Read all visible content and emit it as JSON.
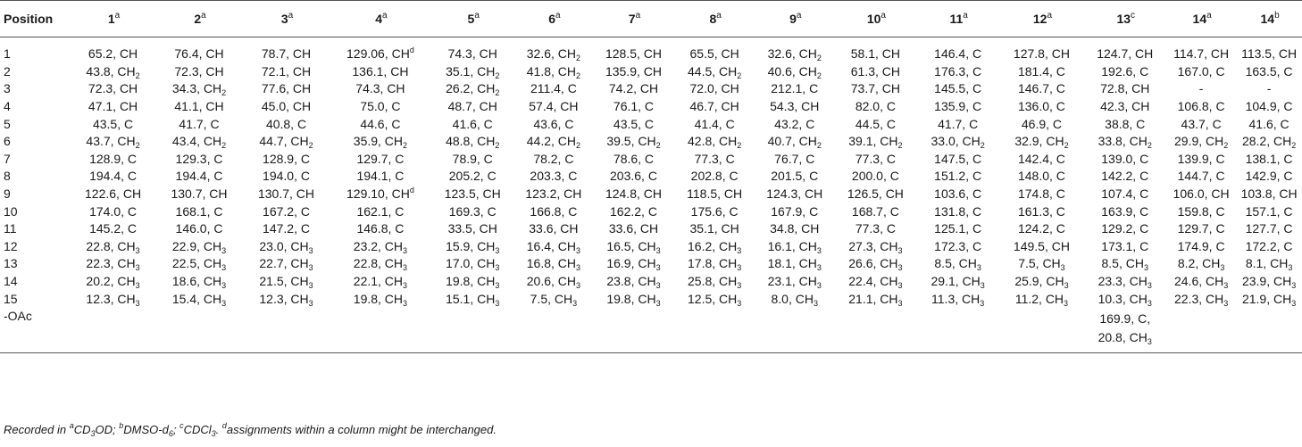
{
  "table": {
    "headers": [
      {
        "text": "Position",
        "sup": ""
      },
      {
        "text": "1",
        "sup": "a"
      },
      {
        "text": "2",
        "sup": "a"
      },
      {
        "text": "3",
        "sup": "a"
      },
      {
        "text": "4",
        "sup": "a"
      },
      {
        "text": "5",
        "sup": "a"
      },
      {
        "text": "6",
        "sup": "a"
      },
      {
        "text": "7",
        "sup": "a"
      },
      {
        "text": "8",
        "sup": "a"
      },
      {
        "text": "9",
        "sup": "a"
      },
      {
        "text": "10",
        "sup": "a"
      },
      {
        "text": "11",
        "sup": "a"
      },
      {
        "text": "12",
        "sup": "a"
      },
      {
        "text": "13",
        "sup": "c"
      },
      {
        "text": "14",
        "sup": "a"
      },
      {
        "text": "14",
        "sup": "b"
      }
    ],
    "rows": [
      [
        "1",
        "65.2, CH",
        "76.4, CH",
        "78.7, CH",
        "129.06, CH^d",
        "74.3, CH",
        "32.6, CH_2",
        "128.5, CH",
        "65.5, CH",
        "32.6, CH_2",
        "58.1, CH",
        "146.4, C",
        "127.8, CH",
        "124.7, CH",
        "114.7, CH",
        "113.5, CH"
      ],
      [
        "2",
        "43.8, CH_2",
        "72.3, CH",
        "72.1, CH",
        "136.1, CH",
        "35.1, CH_2",
        "41.8, CH_2",
        "135.9, CH",
        "44.5, CH_2",
        "40.6, CH_2",
        "61.3, CH",
        "176.3, C",
        "181.4, C",
        "192.6, C",
        "167.0, C",
        "163.5, C"
      ],
      [
        "3",
        "72.3, CH",
        "34.3, CH_2",
        "77.6, CH",
        "74.3, CH",
        "26.2, CH_2",
        "211.4, C",
        "74.2, CH",
        "72.0, CH",
        "212.1, C",
        "73.7, CH",
        "145.5, C",
        "146.7, C",
        "72.8, CH",
        "-",
        "-"
      ],
      [
        "4",
        "47.1, CH",
        "41.1, CH",
        "45.0, CH",
        "75.0, C",
        "48.7, CH",
        "57.4, CH",
        "76.1, C",
        "46.7, CH",
        "54.3, CH",
        "82.0, C",
        "135.9, C",
        "136.0, C",
        "42.3, CH",
        "106.8, C",
        "104.9, C"
      ],
      [
        "5",
        "43.5, C",
        "41.7, C",
        "40.8, C",
        "44.6, C",
        "41.6, C",
        "43.6, C",
        "43.5, C",
        "41.4, C",
        "43.2, C",
        "44.5, C",
        "41.7, C",
        "46.9, C",
        "38.8, C",
        "43.7, C",
        "41.6, C"
      ],
      [
        "6",
        "43.7, CH_2",
        "43.4, CH_2",
        "44.7, CH_2",
        "35.9, CH_2",
        "48.8, CH_2",
        "44.2, CH_2",
        "39.5, CH_2",
        "42.8, CH_2",
        "40.7, CH_2",
        "39.1, CH_2",
        "33.0, CH_2",
        "32.9, CH_2",
        "33.8, CH_2",
        "29.9, CH_2",
        "28.2, CH_2"
      ],
      [
        "7",
        "128.9, C",
        "129.3, C",
        "128.9, C",
        "129.7, C",
        "78.9, C",
        "78.2, C",
        "78.6, C",
        "77.3, C",
        "76.7, C",
        "77.3, C",
        "147.5, C",
        "142.4, C",
        "139.0, C",
        "139.9, C",
        "138.1, C"
      ],
      [
        "8",
        "194.4, C",
        "194.4, C",
        "194.0, C",
        "194.1, C",
        "205.2, C",
        "203.3, C",
        "203.6, C",
        "202.8, C",
        "201.5, C",
        "200.0, C",
        "151.2, C",
        "148.0, C",
        "142.2, C",
        "144.7, C",
        "142.9, C"
      ],
      [
        "9",
        "122.6, CH",
        "130.7, CH",
        "130.7, CH",
        "129.10, CH^d",
        "123.5, CH",
        "123.2, CH",
        "124.8, CH",
        "118.5, CH",
        "124.3, CH",
        "126.5, CH",
        "103.6, C",
        "174.8, C",
        "107.4, C",
        "106.0, CH",
        "103.8, CH"
      ],
      [
        "10",
        "174.0, C",
        "168.1, C",
        "167.2, C",
        "162.1, C",
        "169.3, C",
        "166.8, C",
        "162.2, C",
        "175.6, C",
        "167.9, C",
        "168.7, C",
        "131.8, C",
        "161.3, C",
        "163.9, C",
        "159.8, C",
        "157.1, C"
      ],
      [
        "11",
        "145.2, C",
        "146.0, C",
        "147.2, C",
        "146.8, C",
        "33.5, CH",
        "33.6, CH",
        "33.6, CH",
        "35.1, CH",
        "34.8, CH",
        "77.3, C",
        "125.1, C",
        "124.2, C",
        "129.2, C",
        "129.7, C",
        "127.7, C"
      ],
      [
        "12",
        "22.8, CH_3",
        "22.9, CH_3",
        "23.0, CH_3",
        "23.2, CH_3",
        "15.9, CH_3",
        "16.4, CH_3",
        "16.5, CH_3",
        "16.2, CH_3",
        "16.1, CH_3",
        "27.3, CH_3",
        "172.3, C",
        "149.5, CH",
        "173.1, C",
        "174.9, C",
        "172.2, C"
      ],
      [
        "13",
        "22.3, CH_3",
        "22.5, CH_3",
        "22.7, CH_3",
        "22.8, CH_3",
        "17.0, CH_3",
        "16.8, CH_3",
        "16.9, CH_3",
        "17.8, CH_3",
        "18.1, CH_3",
        "26.6, CH_3",
        "8.5, CH_3",
        "7.5, CH_3",
        "8.5, CH_3",
        "8.2, CH_3",
        "8.1, CH_3"
      ],
      [
        "14",
        "20.2, CH_3",
        "18.6, CH_3",
        "21.5, CH_3",
        "22.1, CH_3",
        "19.8, CH_3",
        "20.6, CH_3",
        "23.8, CH_3",
        "25.8, CH_3",
        "23.1, CH_3",
        "22.4, CH_3",
        "29.1, CH_3",
        "25.9, CH_3",
        "23.3, CH_3",
        "24.6, CH_3",
        "23.9, CH_3"
      ],
      [
        "15",
        "12.3, CH_3",
        "15.4, CH_3",
        "12.3, CH_3",
        "19.8, CH_3",
        "15.1, CH_3",
        "7.5, CH_3",
        "19.8, CH_3",
        "12.5, CH_3",
        "8.0, CH_3",
        "21.1, CH_3",
        "11.3, CH_3",
        "11.2, CH_3",
        "10.3, CH_3",
        "22.3, CH_3",
        "21.9, CH_3"
      ],
      [
        "-OAc",
        "",
        "",
        "",
        "",
        "",
        "",
        "",
        "",
        "",
        "",
        "",
        "",
        "169.9, C,|20.8, CH_3",
        "",
        ""
      ]
    ]
  },
  "footnote": "Recorded in ^aCD_3OD; ^bDMSO-d_6; ^cCDCl_3. ^dassignments within a column might be interchanged."
}
